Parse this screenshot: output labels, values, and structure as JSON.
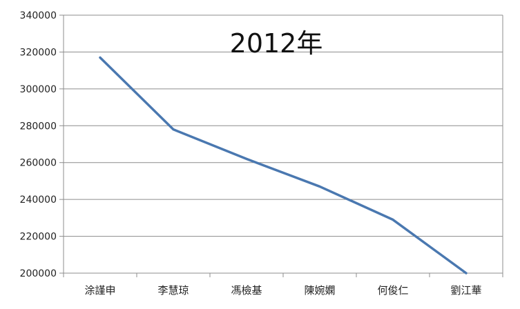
{
  "chart_data": {
    "type": "line",
    "title": "2012年",
    "xlabel": "",
    "ylabel": "",
    "categories": [
      "涂謹申",
      "李慧琼",
      "馮檢基",
      "陳婉嫻",
      "何俊仁",
      "劉江華"
    ],
    "series": [
      {
        "values": [
          317000,
          278000,
          262000,
          247000,
          229000,
          200000
        ]
      }
    ],
    "ylim": [
      200000,
      340000
    ],
    "yticks": [
      "340000",
      "320000",
      "300000",
      "280000",
      "260000",
      "240000",
      "220000",
      "200000"
    ],
    "grid": true,
    "legend": "none",
    "line_color": "#4a78b0",
    "grid_color": "#8c8c8c"
  }
}
